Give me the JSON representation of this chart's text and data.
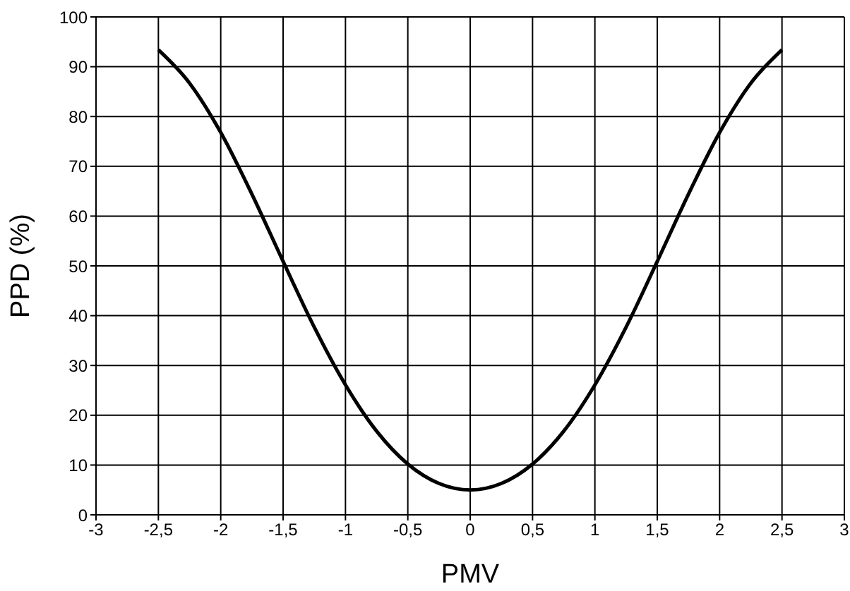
{
  "chart_data": {
    "type": "line",
    "xlabel": "PMV",
    "ylabel": "PPD (%)",
    "x": [
      -2.5,
      -2.25,
      -2,
      -1.75,
      -1.5,
      -1.25,
      -1,
      -0.75,
      -0.5,
      -0.25,
      0,
      0.25,
      0.5,
      0.75,
      1,
      1.25,
      1.5,
      1.75,
      2,
      2.25,
      2.5
    ],
    "series": [
      {
        "color": "#000000",
        "values": [
          93.4,
          86.7,
          76.8,
          64.4,
          50.9,
          37.7,
          26.1,
          16.8,
          10.2,
          6.3,
          5,
          6.3,
          10.2,
          16.8,
          26.1,
          37.7,
          50.9,
          64.4,
          76.8,
          86.7,
          93.4
        ]
      }
    ],
    "xlim": [
      -3,
      3
    ],
    "xticks": [
      -3,
      {
        "value": -2.5,
        "label": "-2,5"
      },
      -2,
      {
        "value": -1.5,
        "label": "-1,5"
      },
      -1,
      {
        "value": -0.5,
        "label": "-0,5"
      },
      0,
      {
        "value": 0.5,
        "label": "0,5"
      },
      1,
      {
        "value": 1.5,
        "label": "1,5"
      },
      2,
      {
        "value": 2.5,
        "label": "2,5"
      },
      3
    ],
    "ylim": [
      0,
      100
    ],
    "yticks": [
      0,
      10,
      20,
      30,
      40,
      50,
      60,
      70,
      80,
      90,
      100
    ],
    "grid": true,
    "marker": "none",
    "line_style": "solid"
  }
}
